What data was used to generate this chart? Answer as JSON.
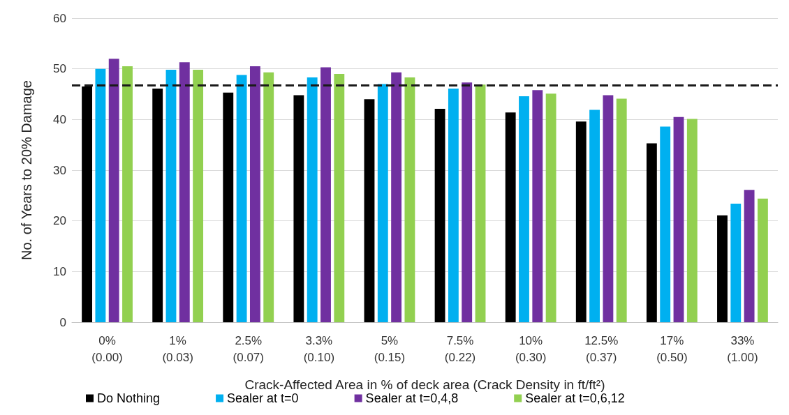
{
  "chart_data": {
    "type": "bar",
    "xlabel": "Crack-Affected Area in % of deck area (Crack Density in ft/ft²)",
    "ylabel": "No. of Years to 20% Damage",
    "categories": [
      "0%\n(0.00)",
      "1%\n(0.03)",
      "2.5%\n(0.07)",
      "3.3%\n(0.10)",
      "5%\n(0.15)",
      "7.5%\n(0.22)",
      "10%\n(0.30)",
      "12.5%\n(0.37)",
      "17%\n(0.50)",
      "33%\n(1.00)"
    ],
    "series": [
      {
        "name": "Do Nothing",
        "color": "#000000",
        "values": [
          46.5,
          46.1,
          45.3,
          44.8,
          44.0,
          42.1,
          41.4,
          39.6,
          35.3,
          21.1
        ]
      },
      {
        "name": "Sealer at t=0",
        "color": "#00b0f0",
        "values": [
          50.0,
          49.8,
          48.8,
          48.3,
          47.0,
          46.1,
          44.6,
          41.9,
          38.6,
          23.4
        ]
      },
      {
        "name": "Sealer at t=0,4,8",
        "color": "#7030a0",
        "values": [
          52.0,
          51.3,
          50.5,
          50.3,
          49.3,
          47.3,
          45.8,
          44.8,
          40.5,
          26.1
        ]
      },
      {
        "name": "Sealer at t=0,6,12",
        "color": "#92d050",
        "values": [
          50.5,
          49.8,
          49.3,
          49.0,
          48.3,
          46.9,
          45.1,
          44.1,
          40.1,
          24.4
        ]
      }
    ],
    "ylim": [
      0,
      60
    ],
    "yticks": [
      0,
      10,
      20,
      30,
      40,
      50,
      60
    ],
    "grid": "y",
    "legend": "bottom left",
    "ref_lines": [
      {
        "axis": "y",
        "value": 46.8,
        "color": "#1a1a1a",
        "line_style": "dashed"
      }
    ]
  }
}
